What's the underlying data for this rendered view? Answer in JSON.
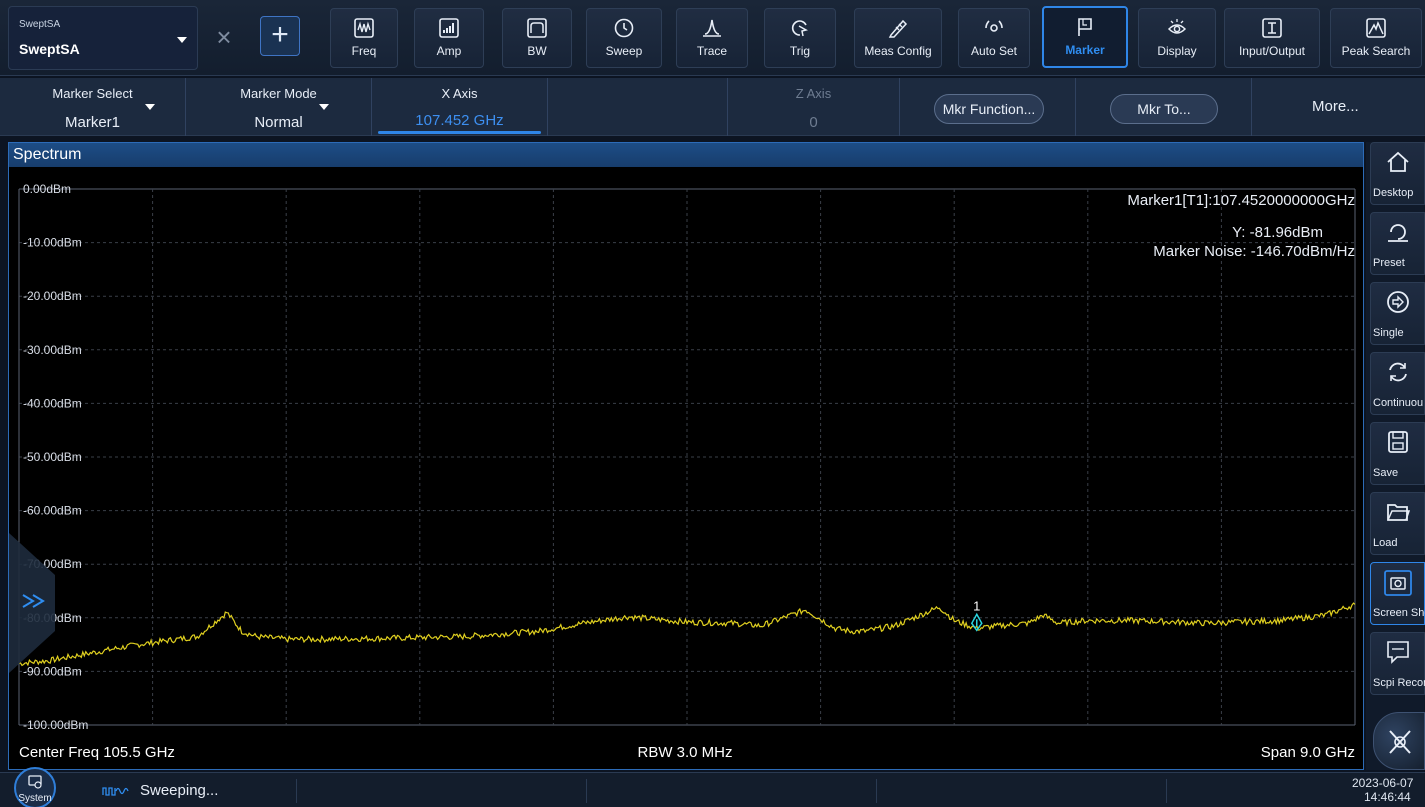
{
  "app": {
    "name_small": "SweptSA",
    "name_big": "SweptSA"
  },
  "toolbar": {
    "buttons": [
      {
        "label": "Freq",
        "icon": "freq-icon"
      },
      {
        "label": "Amp",
        "icon": "amp-icon"
      },
      {
        "label": "BW",
        "icon": "bw-icon"
      },
      {
        "label": "Sweep",
        "icon": "sweep-icon"
      },
      {
        "label": "Trace",
        "icon": "trace-icon"
      },
      {
        "label": "Trig",
        "icon": "trig-icon"
      },
      {
        "label": "Meas Config",
        "icon": "meas-config-icon"
      },
      {
        "label": "Auto Set",
        "icon": "auto-set-icon"
      },
      {
        "label": "Marker",
        "icon": "marker-flag-icon",
        "active": true
      },
      {
        "label": "Display",
        "icon": "display-eye-icon"
      },
      {
        "label": "Input/Output",
        "icon": "input-output-icon"
      },
      {
        "label": "Peak Search",
        "icon": "peak-search-icon"
      }
    ]
  },
  "softkeys": {
    "marker_select": {
      "title": "Marker Select",
      "value": "Marker1"
    },
    "marker_mode": {
      "title": "Marker Mode",
      "value": "Normal"
    },
    "x_axis": {
      "title": "X Axis",
      "value": "107.452 GHz"
    },
    "z_axis": {
      "title": "Z Axis",
      "value": "0"
    },
    "mkr_function": "Mkr Function...",
    "mkr_to": "Mkr To...",
    "more": "More..."
  },
  "spectrum": {
    "title": "Spectrum",
    "marker_readout": {
      "line1": "Marker1[T1]:107.4520000000GHz",
      "line2": "Y: -81.96dBm",
      "line3": "Marker Noise: -146.70dBm/Hz"
    },
    "marker_label": "1",
    "footer": {
      "center": "Center Freq 105.5 GHz",
      "rbw": "RBW 3.0 MHz",
      "span": "Span 9.0 GHz"
    }
  },
  "chart_data": {
    "type": "line",
    "xlabel": "",
    "ylabel": "",
    "xlim": [
      101.0,
      110.0
    ],
    "ylim": [
      -100,
      0
    ],
    "y_ticks": [
      "0.00dBm",
      "-10.00dBm",
      "-20.00dBm",
      "-30.00dBm",
      "-40.00dBm",
      "-50.00dBm",
      "-60.00dBm",
      "-70.00dBm",
      "-80.00dBm",
      "-90.00dBm",
      "-100.00dBm"
    ],
    "grid": true,
    "series": [
      {
        "color": "#e0d020",
        "x": [
          101.0,
          101.2,
          101.5,
          101.8,
          102.2,
          102.4,
          102.5,
          102.6,
          102.8,
          103.0,
          103.5,
          104.0,
          104.5,
          104.8,
          105.1,
          105.5,
          105.8,
          106.0,
          106.3,
          106.5,
          106.6,
          106.7,
          106.9,
          107.2,
          107.3,
          107.4,
          107.452,
          107.6,
          107.8,
          107.9,
          108.0,
          108.2,
          108.5,
          109.0,
          109.5,
          109.8,
          110.0
        ],
        "y": [
          -88.5,
          -88.0,
          -86.5,
          -85.0,
          -83.5,
          -79.0,
          -82.5,
          -83.5,
          -84.0,
          -84.0,
          -83.8,
          -83.5,
          -82.5,
          -81.0,
          -79.8,
          -80.8,
          -81.0,
          -81.5,
          -78.5,
          -82.0,
          -82.5,
          -82.5,
          -81.5,
          -78.0,
          -80.5,
          -81.5,
          -81.96,
          -81.5,
          -81.0,
          -79.5,
          -81.0,
          -80.5,
          -80.5,
          -81.0,
          -80.5,
          -79.5,
          -77.5
        ]
      }
    ],
    "marker": {
      "name": "1",
      "x": 107.452,
      "y": -81.96
    }
  },
  "rightbar": {
    "buttons": [
      {
        "label": "Desktop",
        "icon": "home-icon"
      },
      {
        "label": "Preset",
        "icon": "preset-icon"
      },
      {
        "label": "Single",
        "icon": "single-arrow-icon"
      },
      {
        "label": "Continuou",
        "icon": "continuous-refresh-icon"
      },
      {
        "label": "Save",
        "icon": "save-floppy-icon"
      },
      {
        "label": "Load",
        "icon": "load-folder-icon"
      },
      {
        "label": "Screen Sho",
        "icon": "screenshot-camera-icon",
        "active": true
      },
      {
        "label": "Scpi Recor",
        "icon": "scpi-record-icon"
      }
    ]
  },
  "statusbar": {
    "system_label": "System",
    "status": "Sweeping...",
    "date": "2023-06-07",
    "time": "14:46:44"
  }
}
